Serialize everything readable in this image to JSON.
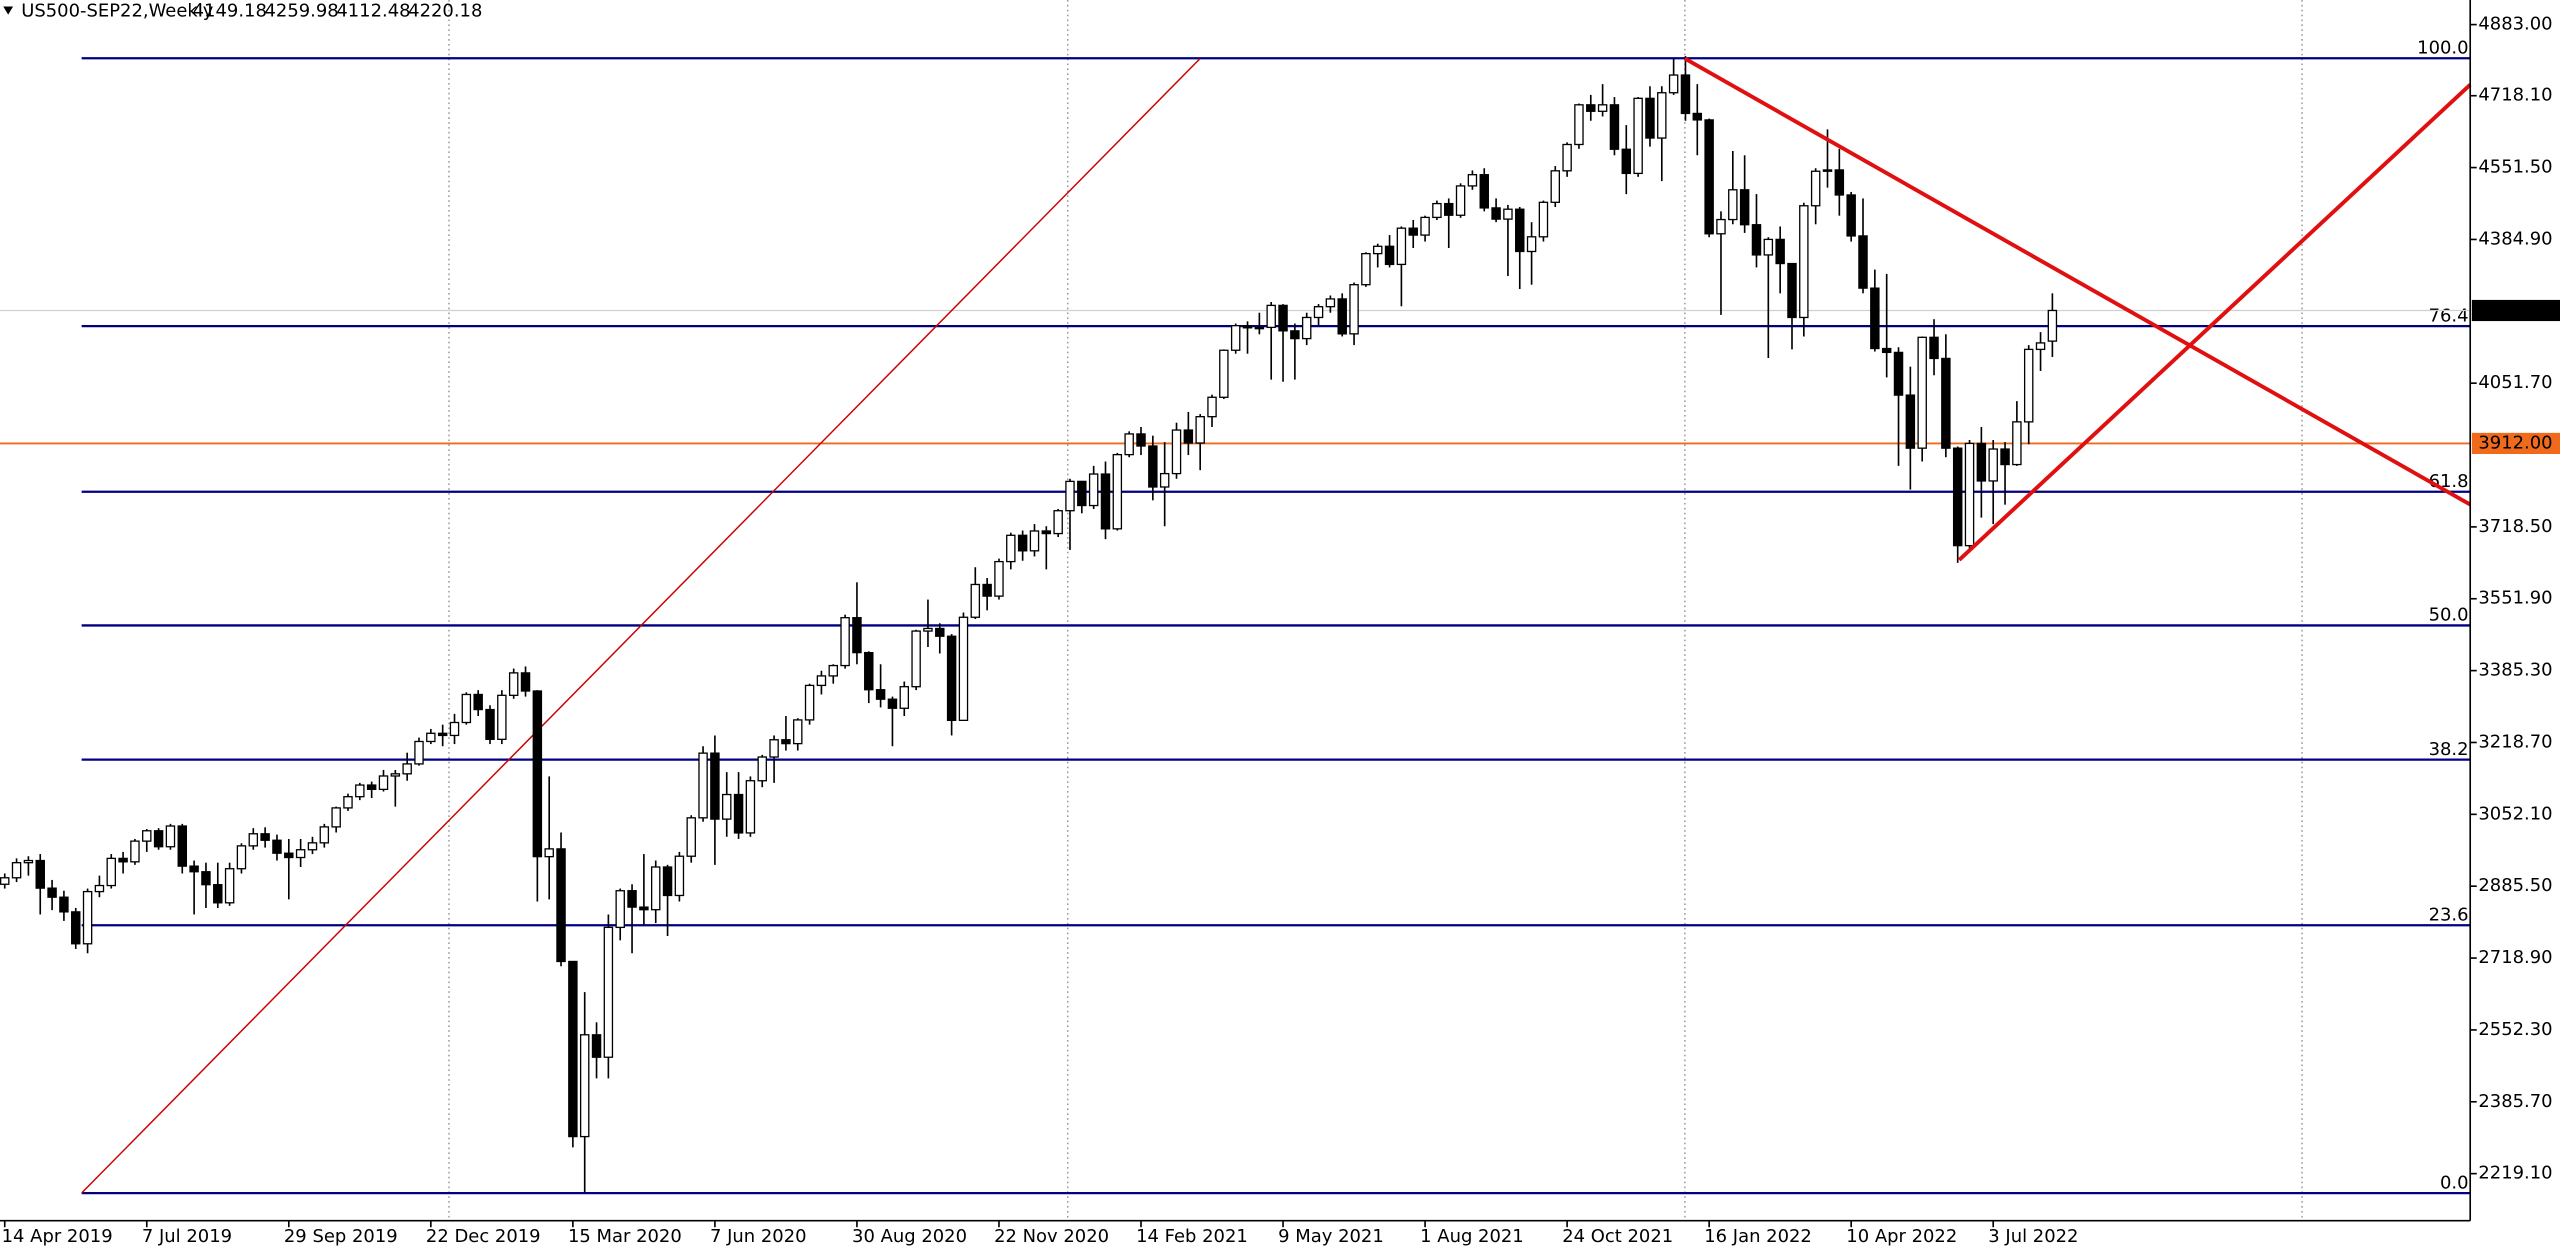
{
  "chart_data": {
    "type": "candlestick",
    "symbol": "US500-SEP22,Weekly",
    "candles": {
      "open": [
        2890,
        2905,
        2940,
        2945,
        2881,
        2860,
        2826,
        2752,
        2873,
        2887,
        2950,
        2942,
        2990,
        3014,
        2977,
        3025,
        2932,
        2919,
        2889,
        2847,
        2926,
        2979,
        3007,
        2992,
        2962,
        2952,
        2970,
        2986,
        3023,
        3067,
        3093,
        3120,
        3110,
        3141,
        3146,
        3169,
        3221,
        3240,
        3235,
        3265,
        3330,
        3295,
        3226,
        3328,
        3380,
        3338,
        2954,
        2972,
        2711,
        2305,
        2541,
        2489,
        2790,
        2875,
        2837,
        2831,
        2930,
        2864,
        2955,
        3044,
        3194,
        3041,
        3098,
        3009,
        3130,
        3185,
        3225,
        3216,
        3271,
        3351,
        3373,
        3397,
        3508,
        3427,
        3341,
        3319,
        3298,
        3348,
        3477,
        3483,
        3465,
        3270,
        3509,
        3585,
        3558,
        3638,
        3699,
        3663,
        3709,
        3703,
        3756,
        3824,
        3768,
        3841,
        3714,
        3886,
        3934,
        3906,
        3811,
        3842,
        3943,
        3913,
        3974,
        4019,
        4128,
        4185,
        4180,
        4181,
        4232,
        4173,
        4155,
        4204,
        4229,
        4247,
        4166,
        4280,
        4352,
        4369,
        4327,
        4411,
        4395,
        4436,
        4468,
        4441,
        4509,
        4535,
        4458,
        4432,
        4455,
        4357,
        4391,
        4471,
        4544,
        4605,
        4697,
        4682,
        4697,
        4594,
        4538,
        4712,
        4620,
        4725,
        4766,
        4677,
        4662,
        4398,
        4431,
        4500,
        4419,
        4349,
        4385,
        4329,
        4204,
        4463,
        4543,
        4546,
        4488,
        4393,
        4272,
        4132,
        4123,
        4024,
        3901,
        4158,
        4109,
        3901,
        3675,
        3912,
        3825,
        3899,
        3863,
        3962,
        4130,
        4149.18
      ],
      "high": [
        2915,
        2950,
        2955,
        2960,
        2900,
        2875,
        2835,
        2880,
        2910,
        2960,
        2965,
        2995,
        3018,
        3020,
        3030,
        3030,
        2945,
        2940,
        2940,
        2940,
        2985,
        3020,
        3022,
        3005,
        2995,
        2995,
        3000,
        3030,
        3070,
        3100,
        3125,
        3128,
        3155,
        3155,
        3195,
        3230,
        3250,
        3260,
        3285,
        3335,
        3340,
        3305,
        3340,
        3390,
        3395,
        3340,
        3140,
        3010,
        2710,
        2640,
        2570,
        2820,
        2880,
        2890,
        2960,
        2945,
        2935,
        2965,
        3050,
        3210,
        3235,
        3150,
        3150,
        3140,
        3190,
        3235,
        3280,
        3275,
        3355,
        3385,
        3400,
        3515,
        3590,
        3430,
        3400,
        3325,
        3360,
        3480,
        3550,
        3495,
        3470,
        3520,
        3625,
        3600,
        3645,
        3705,
        3710,
        3725,
        3720,
        3760,
        3830,
        3825,
        3860,
        3870,
        3890,
        3940,
        3950,
        3930,
        3915,
        3960,
        3985,
        3980,
        4025,
        4130,
        4190,
        4195,
        4215,
        4240,
        4235,
        4190,
        4215,
        4235,
        4255,
        4260,
        4285,
        4355,
        4375,
        4395,
        4415,
        4430,
        4440,
        4475,
        4480,
        4515,
        4545,
        4550,
        4480,
        4465,
        4460,
        4425,
        4475,
        4555,
        4610,
        4700,
        4720,
        4745,
        4715,
        4650,
        4715,
        4740,
        4740,
        4805,
        4810,
        4745,
        4665,
        4450,
        4590,
        4580,
        4490,
        4390,
        4415,
        4330,
        4470,
        4550,
        4640,
        4595,
        4495,
        4480,
        4315,
        4305,
        4135,
        4090,
        4160,
        4200,
        4165,
        3905,
        3920,
        3950,
        3920,
        3915,
        4010,
        4140,
        4170,
        4259.98
      ],
      "low": [
        2880,
        2895,
        2910,
        2820,
        2830,
        2805,
        2740,
        2730,
        2860,
        2880,
        2915,
        2935,
        2965,
        2970,
        2970,
        2915,
        2820,
        2835,
        2835,
        2840,
        2915,
        2970,
        2975,
        2945,
        2855,
        2930,
        2960,
        2975,
        3010,
        3060,
        3085,
        3090,
        3105,
        3070,
        3130,
        3165,
        3215,
        3210,
        3215,
        3260,
        3280,
        3215,
        3215,
        3320,
        3325,
        2850,
        2855,
        2700,
        2280,
        2175,
        2440,
        2440,
        2760,
        2730,
        2795,
        2800,
        2770,
        2850,
        2940,
        3035,
        2935,
        3000,
        2995,
        3000,
        3115,
        3125,
        3200,
        3200,
        3260,
        3330,
        3355,
        3390,
        3400,
        3310,
        3300,
        3210,
        3280,
        3340,
        3440,
        3425,
        3235,
        3270,
        3505,
        3525,
        3550,
        3620,
        3640,
        3650,
        3620,
        3695,
        3665,
        3750,
        3760,
        3690,
        3710,
        3880,
        3885,
        3780,
        3720,
        3830,
        3885,
        3850,
        3950,
        4015,
        4120,
        4120,
        4165,
        4060,
        4055,
        4060,
        4140,
        4185,
        4215,
        4160,
        4140,
        4275,
        4320,
        4320,
        4230,
        4365,
        4380,
        4430,
        4365,
        4435,
        4500,
        4450,
        4425,
        4300,
        4270,
        4280,
        4380,
        4460,
        4530,
        4595,
        4660,
        4670,
        4580,
        4490,
        4530,
        4600,
        4520,
        4720,
        4660,
        4580,
        4390,
        4210,
        4420,
        4400,
        4320,
        4110,
        4260,
        4130,
        4160,
        4420,
        4505,
        4440,
        4380,
        4260,
        4125,
        4065,
        3860,
        3805,
        3870,
        4070,
        3880,
        3635,
        3660,
        3740,
        3725,
        3770,
        3860,
        3910,
        4080,
        4112.48
      ],
      "close": [
        2905,
        2940,
        2945,
        2881,
        2860,
        2826,
        2752,
        2873,
        2887,
        2950,
        2942,
        2990,
        3014,
        2977,
        3025,
        2932,
        2919,
        2889,
        2847,
        2926,
        2979,
        3007,
        2992,
        2962,
        2952,
        2970,
        2986,
        3023,
        3067,
        3093,
        3120,
        3110,
        3141,
        3146,
        3169,
        3221,
        3240,
        3235,
        3265,
        3330,
        3295,
        3226,
        3328,
        3380,
        3338,
        2954,
        2972,
        2711,
        2305,
        2541,
        2489,
        2790,
        2875,
        2837,
        2831,
        2930,
        2864,
        2955,
        3044,
        3194,
        3041,
        3098,
        3009,
        3130,
        3185,
        3225,
        3216,
        3271,
        3351,
        3373,
        3397,
        3508,
        3427,
        3341,
        3319,
        3298,
        3348,
        3477,
        3483,
        3465,
        3270,
        3509,
        3585,
        3558,
        3638,
        3699,
        3663,
        3709,
        3703,
        3756,
        3824,
        3768,
        3841,
        3714,
        3886,
        3934,
        3906,
        3811,
        3842,
        3943,
        3913,
        3974,
        4019,
        4128,
        4185,
        4180,
        4181,
        4232,
        4173,
        4155,
        4204,
        4229,
        4247,
        4166,
        4280,
        4352,
        4369,
        4327,
        4411,
        4395,
        4436,
        4468,
        4441,
        4509,
        4535,
        4458,
        4432,
        4455,
        4357,
        4391,
        4471,
        4544,
        4605,
        4697,
        4682,
        4697,
        4594,
        4538,
        4712,
        4620,
        4725,
        4766,
        4677,
        4662,
        4398,
        4431,
        4500,
        4419,
        4349,
        4385,
        4329,
        4204,
        4463,
        4543,
        4546,
        4488,
        4393,
        4272,
        4132,
        4123,
        4024,
        3901,
        4158,
        4109,
        3901,
        3675,
        3912,
        3825,
        3899,
        3863,
        3962,
        4130,
        4145,
        4220.18
      ]
    },
    "bull_color": "#ffffff",
    "bear_color": "#000000",
    "xlim": [
      -0.4,
      208.3
    ],
    "ylim": [
      2110,
      4940
    ],
    "yticks": [
      {
        "value": 4883,
        "label": "4883.00"
      },
      {
        "value": 4718.1,
        "label": "4718.10"
      },
      {
        "value": 4551.5,
        "label": "4551.50"
      },
      {
        "value": 4384.9,
        "label": "4384.90"
      },
      {
        "value": 4051.7,
        "label": "4051.70"
      },
      {
        "value": 3718.5,
        "label": "3718.50"
      },
      {
        "value": 3551.9,
        "label": "3551.90"
      },
      {
        "value": 3385.3,
        "label": "3385.30"
      },
      {
        "value": 3218.7,
        "label": "3218.70"
      },
      {
        "value": 3052.1,
        "label": "3052.10"
      },
      {
        "value": 2885.5,
        "label": "2885.50"
      },
      {
        "value": 2718.9,
        "label": "2718.90"
      },
      {
        "value": 2552.3,
        "label": "2552.30"
      },
      {
        "value": 2385.7,
        "label": "2385.70"
      },
      {
        "value": 2219.1,
        "label": "2219.10"
      }
    ],
    "xticks": [
      {
        "value": 0,
        "label": "14 Apr 2019"
      },
      {
        "value": 12,
        "label": "7 Jul 2019"
      },
      {
        "value": 24,
        "label": "29 Sep 2019"
      },
      {
        "value": 36,
        "label": "22 Dec 2019"
      },
      {
        "value": 48,
        "label": "15 Mar 2020"
      },
      {
        "value": 60,
        "label": "7 Jun 2020"
      },
      {
        "value": 72,
        "label": "30 Aug 2020"
      },
      {
        "value": 84,
        "label": "22 Nov 2020"
      },
      {
        "value": 96,
        "label": "14 Feb 2021"
      },
      {
        "value": 108,
        "label": "9 May 2021"
      },
      {
        "value": 120,
        "label": "1 Aug 2021"
      },
      {
        "value": 132,
        "label": "24 Oct 2021"
      },
      {
        "value": 144,
        "label": "16 Jan 2022"
      },
      {
        "value": 156,
        "label": "10 Apr 2022"
      },
      {
        "value": 168,
        "label": "3 Jul 2022"
      }
    ],
    "fib_color": "#000080",
    "fib_levels": [
      {
        "label": "100.0",
        "price": 4805
      },
      {
        "label": "76.4",
        "price": 4184
      },
      {
        "label": "61.8",
        "price": 3800
      },
      {
        "label": "50.0",
        "price": 3490
      },
      {
        "label": "38.2",
        "price": 3179
      },
      {
        "label": "23.6",
        "price": 2795
      },
      {
        "label": "0.0",
        "price": 2174
      }
    ],
    "hline": {
      "value": 3912,
      "label": "3912.00",
      "color": "#f06a1c"
    }
  }
}
